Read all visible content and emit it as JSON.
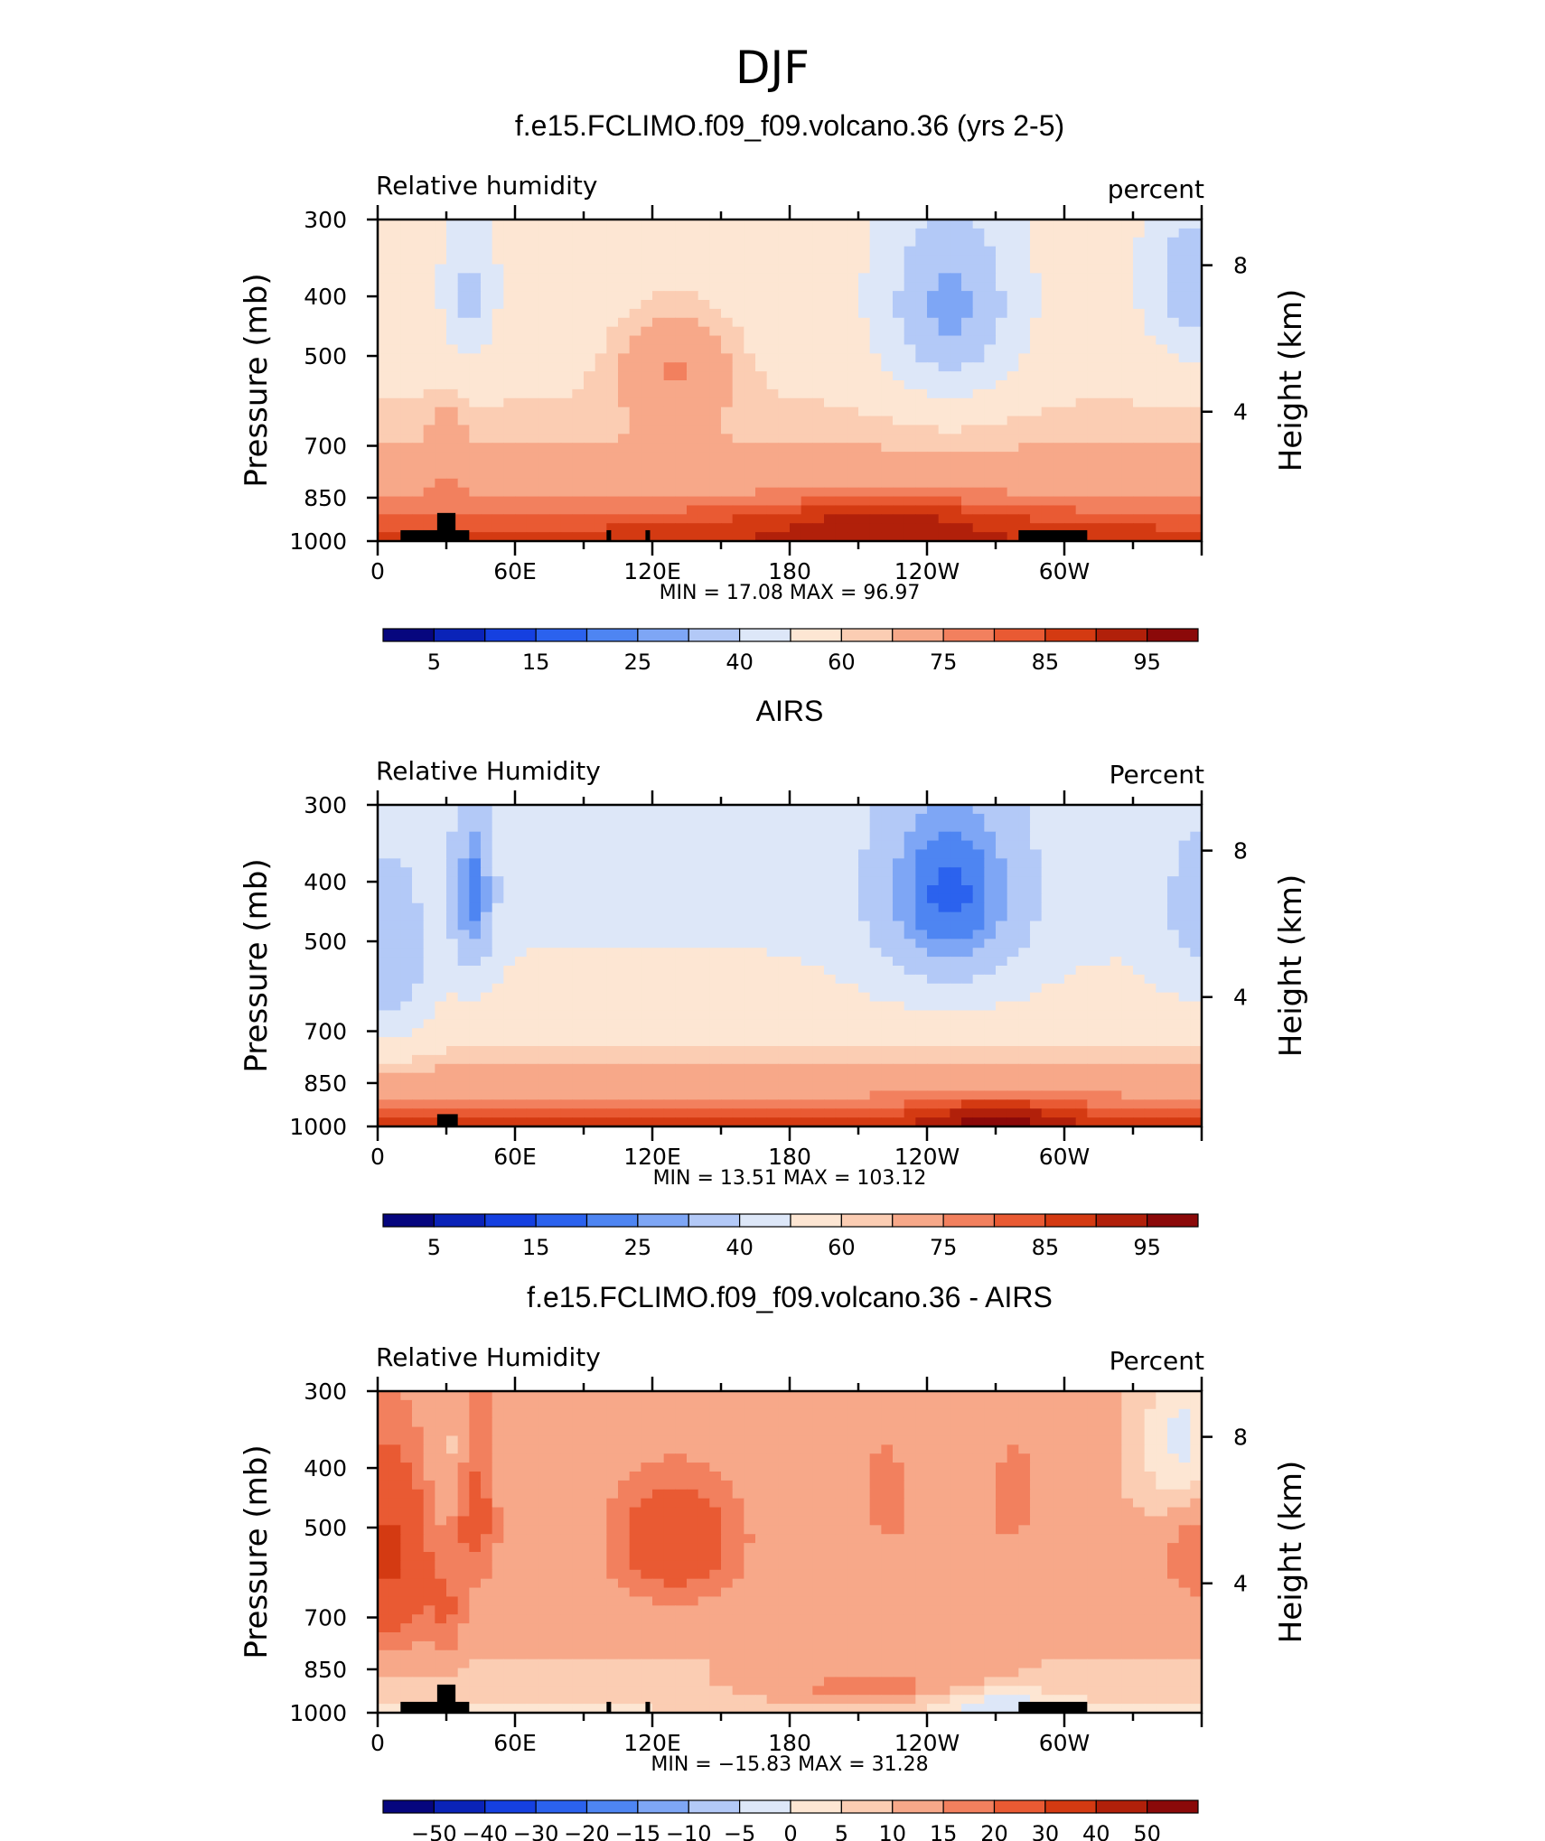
{
  "page": {
    "season": "DJF"
  },
  "chart_data": [
    {
      "type": "heatmap",
      "title": "f.e15.FCLIMO.f09_f09.volcano.36 (yrs 2-5)",
      "left_label": "Relative humidity",
      "right_label": "percent",
      "ylabel": "Pressure (mb)",
      "ylabel_right": "Height (km)",
      "x_ticks": [
        "0",
        "60E",
        "120E",
        "180",
        "120W",
        "60W"
      ],
      "y_ticks": [
        "300",
        "400",
        "500",
        "700",
        "850",
        "1000"
      ],
      "y_ticks_right": [
        "8",
        "4"
      ],
      "min_max": {
        "min_label": "MIN =",
        "min": "17.08",
        "max_label": "MAX =",
        "max": "96.97"
      },
      "colorbar_levels": [
        5,
        10,
        15,
        20,
        25,
        30,
        40,
        50,
        60,
        65,
        75,
        80,
        85,
        90,
        95
      ],
      "colorbar_labels": [
        "5",
        "15",
        "25",
        "40",
        "60",
        "75",
        "85",
        "95"
      ],
      "colors": [
        "#06067e",
        "#0a23b8",
        "#1540e0",
        "#2b62ee",
        "#4e85f2",
        "#7ea6f5",
        "#b3c9f7",
        "#dde7f8",
        "#fde6d3",
        "#fbcdb3",
        "#f7a889",
        "#f2805e",
        "#e95a33",
        "#d43a12",
        "#b1200a",
        "#8b0909"
      ],
      "range": [
        17.08,
        96.97
      ]
    },
    {
      "type": "heatmap",
      "title": "AIRS",
      "left_label": "Relative Humidity",
      "right_label": "Percent",
      "ylabel": "Pressure (mb)",
      "ylabel_right": "Height (km)",
      "x_ticks": [
        "0",
        "60E",
        "120E",
        "180",
        "120W",
        "60W"
      ],
      "y_ticks": [
        "300",
        "400",
        "500",
        "700",
        "850",
        "1000"
      ],
      "y_ticks_right": [
        "8",
        "4"
      ],
      "min_max": {
        "min_label": "MIN =",
        "min": "13.51",
        "max_label": "MAX =",
        "max": "103.12"
      },
      "colorbar_levels": [
        5,
        10,
        15,
        20,
        25,
        30,
        40,
        50,
        60,
        65,
        75,
        80,
        85,
        90,
        95
      ],
      "colorbar_labels": [
        "5",
        "15",
        "25",
        "40",
        "60",
        "75",
        "85",
        "95"
      ],
      "colors": [
        "#06067e",
        "#0a23b8",
        "#1540e0",
        "#2b62ee",
        "#4e85f2",
        "#7ea6f5",
        "#b3c9f7",
        "#dde7f8",
        "#fde6d3",
        "#fbcdb3",
        "#f7a889",
        "#f2805e",
        "#e95a33",
        "#d43a12",
        "#b1200a",
        "#8b0909"
      ],
      "range": [
        13.51,
        103.12
      ]
    },
    {
      "type": "heatmap",
      "title": "f.e15.FCLIMO.f09_f09.volcano.36 - AIRS",
      "left_label": "Relative Humidity",
      "right_label": "Percent",
      "ylabel": "Pressure (mb)",
      "ylabel_right": "Height (km)",
      "x_ticks": [
        "0",
        "60E",
        "120E",
        "180",
        "120W",
        "60W"
      ],
      "y_ticks": [
        "300",
        "400",
        "500",
        "700",
        "850",
        "1000"
      ],
      "y_ticks_right": [
        "8",
        "4"
      ],
      "min_max": {
        "min_label": "MIN =",
        "min": "−15.83",
        "max_label": "MAX =",
        "max": "31.28"
      },
      "colorbar_levels": [
        -50,
        -40,
        -30,
        -20,
        -15,
        -10,
        -5,
        0,
        5,
        10,
        15,
        20,
        30,
        40,
        50
      ],
      "colorbar_labels": [
        "−50",
        "−40",
        "−30",
        "−20",
        "−15",
        "−10",
        "−5",
        "0",
        "5",
        "10",
        "15",
        "20",
        "30",
        "40",
        "50"
      ],
      "colors": [
        "#06067e",
        "#0a23b8",
        "#1540e0",
        "#2b62ee",
        "#4e85f2",
        "#7ea6f5",
        "#b3c9f7",
        "#dde7f8",
        "#fde6d3",
        "#fbcdb3",
        "#f7a889",
        "#f2805e",
        "#e95a33",
        "#d43a12",
        "#b1200a",
        "#8b0909"
      ],
      "range": [
        -15.83,
        31.28
      ]
    }
  ]
}
